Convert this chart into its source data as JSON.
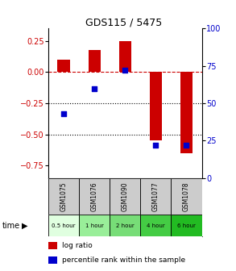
{
  "title": "GDS115 / 5475",
  "samples": [
    "GSM1075",
    "GSM1076",
    "GSM1090",
    "GSM1077",
    "GSM1078"
  ],
  "time_labels": [
    "0.5 hour",
    "1 hour",
    "2 hour",
    "4 hour",
    "6 hour"
  ],
  "log_ratio": [
    0.1,
    0.18,
    0.25,
    -0.55,
    -0.65
  ],
  "percentile_rank": [
    43,
    60,
    72,
    22,
    22
  ],
  "bar_color": "#cc0000",
  "dot_color": "#0000cc",
  "ylim_left": [
    -0.85,
    0.35
  ],
  "ylim_right": [
    0,
    100
  ],
  "yticks_left": [
    0.25,
    0.0,
    -0.25,
    -0.5,
    -0.75
  ],
  "yticks_right": [
    100,
    75,
    50,
    25,
    0
  ],
  "hline_red": 0.0,
  "hlines_black": [
    -0.25,
    -0.5
  ],
  "bg_color": "#ffffff",
  "plot_bg": "#ffffff",
  "header_color": "#cccccc",
  "time_row_colors": [
    "#e0ffe0",
    "#99ee99",
    "#77dd77",
    "#44cc44",
    "#22bb22"
  ]
}
